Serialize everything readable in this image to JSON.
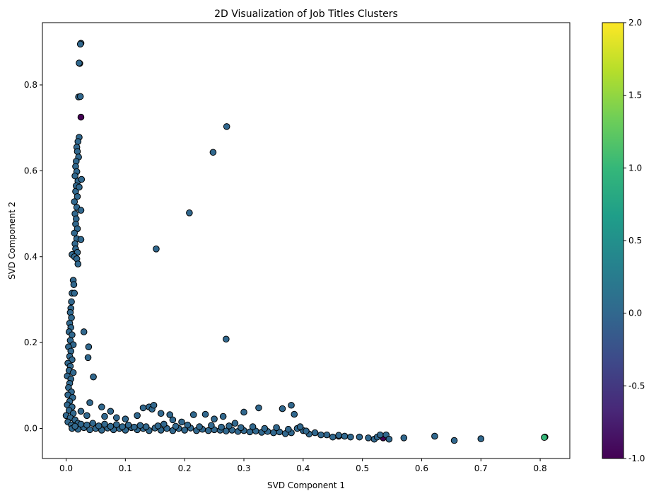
{
  "chart_data": {
    "type": "scatter",
    "title": "2D Visualization of Job Titles Clusters",
    "xlabel": "SVD Component 1",
    "ylabel": "SVD Component 2",
    "xlim": [
      -0.04,
      0.85
    ],
    "ylim": [
      -0.07,
      0.945
    ],
    "xticks": [
      "0.0",
      "0.1",
      "0.2",
      "0.3",
      "0.4",
      "0.5",
      "0.6",
      "0.7",
      "0.8"
    ],
    "yticks": [
      "0.0",
      "0.2",
      "0.4",
      "0.6",
      "0.8"
    ],
    "grid": false,
    "marker_edge_color": "#000000",
    "colorbar": {
      "colormap": "viridis",
      "range": [
        -1.0,
        2.0
      ],
      "ticks": [
        "-1.0",
        "-0.5",
        "0.0",
        "0.5",
        "1.0",
        "1.5",
        "2.0"
      ],
      "colors": [
        "#440154",
        "#482878",
        "#3e4989",
        "#31688e",
        "#26828e",
        "#1f9e89",
        "#35b779",
        "#6ece58",
        "#b5de2b",
        "#fde725"
      ]
    },
    "clusters": [
      {
        "label": -1,
        "color": "#440154",
        "points": [
          [
            0.025,
            0.725
          ],
          [
            0.535,
            -0.022
          ],
          [
            0.46,
            -0.018
          ]
        ]
      },
      {
        "label": 0,
        "color": "#31688e",
        "points": [
          [
            0.025,
            0.897
          ],
          [
            0.024,
            0.895
          ],
          [
            0.023,
            0.85
          ],
          [
            0.022,
            0.851
          ],
          [
            0.021,
            0.772
          ],
          [
            0.024,
            0.773
          ],
          [
            0.022,
            0.678
          ],
          [
            0.02,
            0.668
          ],
          [
            0.018,
            0.655
          ],
          [
            0.019,
            0.645
          ],
          [
            0.021,
            0.632
          ],
          [
            0.017,
            0.622
          ],
          [
            0.016,
            0.61
          ],
          [
            0.018,
            0.598
          ],
          [
            0.015,
            0.588
          ],
          [
            0.02,
            0.576
          ],
          [
            0.017,
            0.565
          ],
          [
            0.016,
            0.552
          ],
          [
            0.019,
            0.54
          ],
          [
            0.014,
            0.528
          ],
          [
            0.018,
            0.515
          ],
          [
            0.025,
            0.508
          ],
          [
            0.015,
            0.5
          ],
          [
            0.017,
            0.488
          ],
          [
            0.016,
            0.476
          ],
          [
            0.019,
            0.465
          ],
          [
            0.014,
            0.455
          ],
          [
            0.018,
            0.442
          ],
          [
            0.025,
            0.44
          ],
          [
            0.015,
            0.43
          ],
          [
            0.016,
            0.418
          ],
          [
            0.019,
            0.41
          ],
          [
            0.01,
            0.405
          ],
          [
            0.014,
            0.4
          ],
          [
            0.018,
            0.395
          ],
          [
            0.02,
            0.383
          ],
          [
            0.026,
            0.58
          ],
          [
            0.022,
            0.562
          ],
          [
            0.012,
            0.345
          ],
          [
            0.013,
            0.335
          ],
          [
            0.01,
            0.315
          ],
          [
            0.014,
            0.315
          ],
          [
            0.009,
            0.295
          ],
          [
            0.008,
            0.28
          ],
          [
            0.007,
            0.27
          ],
          [
            0.009,
            0.258
          ],
          [
            0.006,
            0.245
          ],
          [
            0.008,
            0.235
          ],
          [
            0.005,
            0.225
          ],
          [
            0.01,
            0.218
          ],
          [
            0.007,
            0.205
          ],
          [
            0.012,
            0.195
          ],
          [
            0.004,
            0.19
          ],
          [
            0.008,
            0.18
          ],
          [
            0.006,
            0.168
          ],
          [
            0.01,
            0.16
          ],
          [
            0.003,
            0.152
          ],
          [
            0.007,
            0.145
          ],
          [
            0.005,
            0.135
          ],
          [
            0.012,
            0.13
          ],
          [
            0.002,
            0.122
          ],
          [
            0.008,
            0.115
          ],
          [
            0.006,
            0.105
          ],
          [
            0.004,
            0.095
          ],
          [
            0.009,
            0.085
          ],
          [
            0.003,
            0.078
          ],
          [
            0.011,
            0.072
          ],
          [
            0.006,
            0.063
          ],
          [
            0.002,
            0.055
          ],
          [
            0.01,
            0.05
          ],
          [
            0.005,
            0.042
          ],
          [
            0.012,
            0.035
          ],
          [
            0.0,
            0.03
          ],
          [
            0.007,
            0.025
          ],
          [
            0.015,
            0.02
          ],
          [
            0.003,
            0.015
          ],
          [
            0.02,
            0.012
          ],
          [
            0.009,
            0.008
          ],
          [
            0.03,
            0.225
          ],
          [
            0.038,
            0.19
          ],
          [
            0.037,
            0.165
          ],
          [
            0.046,
            0.12
          ],
          [
            0.04,
            0.06
          ],
          [
            0.025,
            0.04
          ],
          [
            0.035,
            0.03
          ],
          [
            0.06,
            0.05
          ],
          [
            0.075,
            0.04
          ],
          [
            0.065,
            0.028
          ],
          [
            0.085,
            0.025
          ],
          [
            0.1,
            0.022
          ],
          [
            0.12,
            0.03
          ],
          [
            0.13,
            0.048
          ],
          [
            0.14,
            0.05
          ],
          [
            0.145,
            0.045
          ],
          [
            0.148,
            0.054
          ],
          [
            0.16,
            0.035
          ],
          [
            0.175,
            0.032
          ],
          [
            0.18,
            0.02
          ],
          [
            0.195,
            0.015
          ],
          [
            0.215,
            0.032
          ],
          [
            0.235,
            0.033
          ],
          [
            0.25,
            0.022
          ],
          [
            0.265,
            0.028
          ],
          [
            0.285,
            0.012
          ],
          [
            0.3,
            0.038
          ],
          [
            0.325,
            0.048
          ],
          [
            0.365,
            0.046
          ],
          [
            0.38,
            0.054
          ],
          [
            0.385,
            0.033
          ],
          [
            0.39,
            0.0
          ],
          [
            0.4,
            -0.005
          ],
          [
            0.42,
            -0.01
          ],
          [
            0.44,
            -0.015
          ],
          [
            0.45,
            -0.02
          ],
          [
            0.47,
            -0.018
          ],
          [
            0.48,
            -0.02
          ],
          [
            0.495,
            -0.02
          ],
          [
            0.51,
            -0.022
          ],
          [
            0.52,
            -0.025
          ],
          [
            0.525,
            -0.02
          ],
          [
            0.53,
            -0.015
          ],
          [
            0.54,
            -0.015
          ],
          [
            0.545,
            -0.025
          ],
          [
            0.57,
            -0.022
          ],
          [
            0.622,
            -0.018
          ],
          [
            0.655,
            -0.028
          ],
          [
            0.7,
            -0.024
          ],
          [
            0.01,
            0.0
          ],
          [
            0.02,
            -0.002
          ],
          [
            0.03,
            0.002
          ],
          [
            0.04,
            -0.003
          ],
          [
            0.05,
            0.0
          ],
          [
            0.06,
            -0.004
          ],
          [
            0.07,
            0.001
          ],
          [
            0.08,
            -0.003
          ],
          [
            0.09,
            0.0
          ],
          [
            0.1,
            -0.004
          ],
          [
            0.11,
            0.002
          ],
          [
            0.12,
            -0.003
          ],
          [
            0.13,
            0.0
          ],
          [
            0.14,
            -0.005
          ],
          [
            0.15,
            0.001
          ],
          [
            0.16,
            -0.004
          ],
          [
            0.17,
            0.0
          ],
          [
            0.18,
            -0.005
          ],
          [
            0.19,
            0.0
          ],
          [
            0.2,
            -0.004
          ],
          [
            0.21,
            0.001
          ],
          [
            0.22,
            -0.005
          ],
          [
            0.23,
            -0.002
          ],
          [
            0.24,
            -0.005
          ],
          [
            0.25,
            -0.003
          ],
          [
            0.26,
            -0.004
          ],
          [
            0.27,
            -0.006
          ],
          [
            0.28,
            -0.004
          ],
          [
            0.29,
            -0.007
          ],
          [
            0.3,
            -0.005
          ],
          [
            0.31,
            -0.008
          ],
          [
            0.32,
            -0.006
          ],
          [
            0.33,
            -0.009
          ],
          [
            0.34,
            -0.007
          ],
          [
            0.35,
            -0.01
          ],
          [
            0.36,
            -0.008
          ],
          [
            0.37,
            -0.012
          ],
          [
            0.38,
            -0.01
          ],
          [
            0.41,
            -0.013
          ],
          [
            0.43,
            -0.015
          ],
          [
            0.46,
            -0.016
          ],
          [
            0.015,
            0.005
          ],
          [
            0.025,
            0.01
          ],
          [
            0.035,
            0.008
          ],
          [
            0.045,
            0.012
          ],
          [
            0.055,
            0.006
          ],
          [
            0.065,
            0.01
          ],
          [
            0.075,
            0.005
          ],
          [
            0.085,
            0.009
          ],
          [
            0.095,
            0.004
          ],
          [
            0.105,
            0.008
          ],
          [
            0.115,
            0.003
          ],
          [
            0.125,
            0.007
          ],
          [
            0.135,
            0.004
          ],
          [
            0.155,
            0.006
          ],
          [
            0.165,
            0.01
          ],
          [
            0.185,
            0.005
          ],
          [
            0.205,
            0.008
          ],
          [
            0.225,
            0.004
          ],
          [
            0.245,
            0.007
          ],
          [
            0.262,
            0.003
          ],
          [
            0.275,
            0.006
          ],
          [
            0.295,
            0.002
          ],
          [
            0.315,
            0.004
          ],
          [
            0.335,
            0.0
          ],
          [
            0.355,
            0.002
          ],
          [
            0.375,
            -0.002
          ],
          [
            0.395,
            0.004
          ],
          [
            0.405,
            -0.006
          ],
          [
            0.152,
            0.418
          ],
          [
            0.208,
            0.502
          ],
          [
            0.248,
            0.643
          ],
          [
            0.271,
            0.703
          ],
          [
            0.27,
            0.208
          ]
        ]
      },
      {
        "label": 2,
        "color": "#35b779",
        "points": [
          [
            0.808,
            -0.02
          ],
          [
            0.807,
            -0.021
          ]
        ]
      }
    ]
  }
}
